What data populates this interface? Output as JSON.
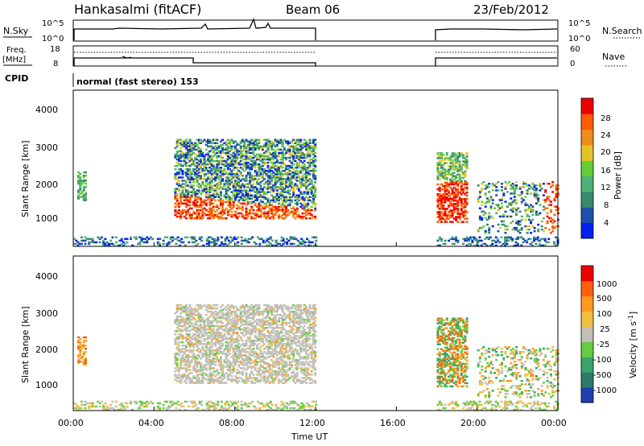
{
  "header": {
    "station": "Hankasalmi (fitACF)",
    "beam": "Beam 06",
    "date": "23/Feb/2012"
  },
  "summary": {
    "nsky_label": "N.Sky",
    "nsky_ticks": [
      "10^5",
      "10^0"
    ],
    "nsearch_label": "N.Search",
    "nsearch_ticks": [
      "10^5",
      "10^0"
    ],
    "freq_label": "Freq.",
    "freq_unit": "[MHz]",
    "freq_ticks": [
      "18",
      "8"
    ],
    "nave_label": "Nave",
    "nave_ticks": [
      "60",
      "0"
    ],
    "cpid_label": "CPID",
    "cpid_text": "normal (fast stereo) 153"
  },
  "chart_data": [
    {
      "type": "heatmap",
      "name": "power",
      "ylabel": "Slant Range [km]",
      "yticks": [
        "4000",
        "3000",
        "2000",
        "1000"
      ],
      "ylim": [
        200,
        4500
      ],
      "xlim_hours": [
        0,
        24
      ],
      "colorbar": {
        "label": "Power [dB]",
        "ticks": [
          "28",
          "24",
          "20",
          "16",
          "12",
          "8",
          "4"
        ],
        "colors": [
          "#0022ee",
          "#1f4fa8",
          "#3a8a6e",
          "#4fb07a",
          "#66cc33",
          "#e6c229",
          "#f08c1a",
          "#ff5a00",
          "#ee0000"
        ]
      },
      "data_periods_ut": [
        [
          0,
          12
        ],
        [
          18,
          24
        ]
      ]
    },
    {
      "type": "heatmap",
      "name": "velocity",
      "ylabel": "Slant Range [km]",
      "yticks": [
        "4000",
        "3000",
        "2000",
        "1000"
      ],
      "ylim": [
        200,
        4500
      ],
      "xlim_hours": [
        0,
        24
      ],
      "colorbar": {
        "label": "Velocity [m s",
        "label_exp": "-1",
        "label_end": "]",
        "ticks": [
          "1000",
          "500",
          "100",
          "25",
          "-25",
          "-100",
          "-500",
          "-1000"
        ],
        "colors": [
          "#1f3fb0",
          "#2d7a6a",
          "#3aa36a",
          "#66cc44",
          "#c0c0b8",
          "#f0c040",
          "#ff9a20",
          "#ff6010",
          "#ee0000"
        ]
      },
      "data_periods_ut": [
        [
          0,
          12
        ],
        [
          18,
          24
        ]
      ]
    }
  ],
  "xaxis": {
    "ticks": [
      "00:00",
      "04:00",
      "08:00",
      "12:00",
      "16:00",
      "20:00",
      "00:00"
    ],
    "label": "Time UT"
  }
}
